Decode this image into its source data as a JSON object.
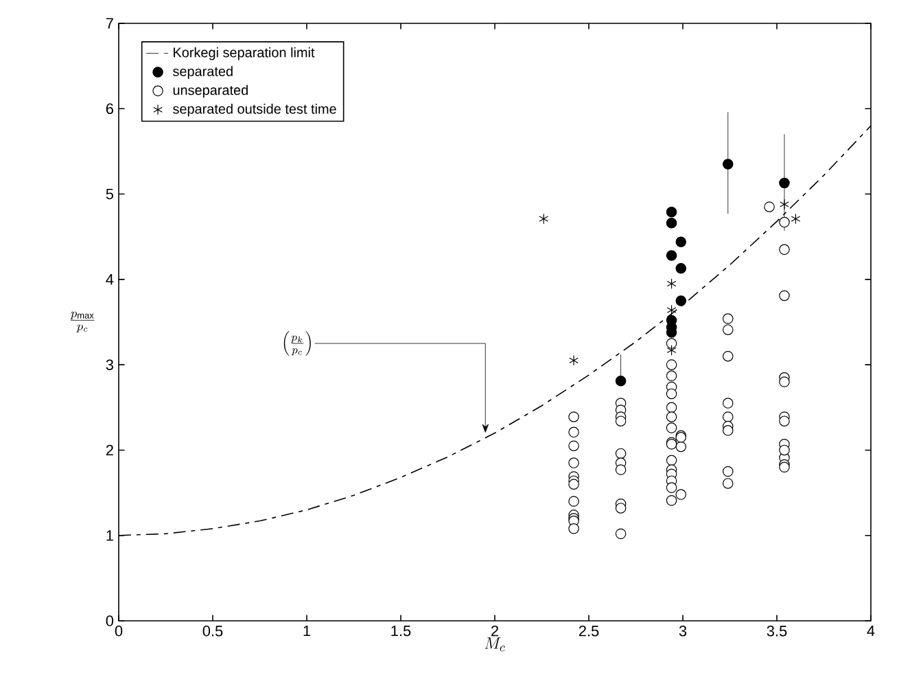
{
  "chart_data": {
    "type": "scatter",
    "xlabel": "M_c",
    "ylabel": "\\frac{p_{\\max}}{p_c}",
    "xlim": [
      0,
      4
    ],
    "ylim": [
      0,
      7
    ],
    "xticks": [
      0,
      0.5,
      1,
      1.5,
      2,
      2.5,
      3,
      3.5,
      4
    ],
    "yticks": [
      0,
      1,
      2,
      3,
      4,
      5,
      6,
      7
    ],
    "legend": "top left",
    "grid": false,
    "annotations": [
      {
        "text": "\\left(\\frac{p_k}{p_c}\\right)",
        "x": 1.95,
        "y": 2.2
      }
    ],
    "series": [
      {
        "name": "Korkegi separation limit",
        "type": "line",
        "line_style": "dashed",
        "marker": "none",
        "color": "#000000",
        "x": [
          0,
          0.25,
          0.5,
          0.75,
          1,
          1.25,
          1.5,
          1.75,
          2,
          2.25,
          2.5,
          2.75,
          3,
          3.25,
          3.5,
          3.75,
          4
        ],
        "values": [
          1.0,
          1.02,
          1.08,
          1.17,
          1.3,
          1.47,
          1.68,
          1.92,
          2.2,
          2.52,
          2.88,
          3.27,
          3.7,
          4.17,
          4.68,
          5.22,
          5.8
        ]
      },
      {
        "name": "separated",
        "marker": "circle",
        "color": "#000000",
        "x": [
          2.67,
          2.94,
          2.94,
          2.99,
          2.94,
          2.99,
          2.99,
          2.94,
          2.94,
          2.94,
          3.24,
          3.54
        ],
        "values": [
          2.81,
          4.79,
          4.66,
          4.44,
          4.28,
          4.13,
          3.75,
          3.52,
          3.44,
          3.38,
          5.35,
          5.13
        ],
        "errors": [
          [
            2.81,
            3.12
          ],
          null,
          null,
          null,
          null,
          null,
          null,
          null,
          null,
          null,
          [
            4.77,
            5.96
          ],
          [
            4.57,
            5.7
          ]
        ]
      },
      {
        "name": "unseparated",
        "marker": "circle",
        "color": "#ffffff",
        "x": [
          2.42,
          2.42,
          2.42,
          2.42,
          2.42,
          2.42,
          2.42,
          2.42,
          2.42,
          2.42,
          2.42,
          2.42,
          2.67,
          2.67,
          2.67,
          2.67,
          2.67,
          2.67,
          2.67,
          2.67,
          2.67,
          2.67,
          2.94,
          2.94,
          2.94,
          2.94,
          2.94,
          2.94,
          2.94,
          2.94,
          2.94,
          2.99,
          2.99,
          2.99,
          2.94,
          2.94,
          2.94,
          2.94,
          2.94,
          2.94,
          2.99,
          2.94,
          3.24,
          3.24,
          3.24,
          3.24,
          3.24,
          3.24,
          3.24,
          3.24,
          3.24,
          3.54,
          3.54,
          3.54,
          3.54,
          3.54,
          3.54,
          3.54,
          3.54,
          3.54,
          3.54,
          3.54,
          3.46,
          3.54
        ],
        "values": [
          2.39,
          2.21,
          2.05,
          1.85,
          1.69,
          1.64,
          1.6,
          1.4,
          1.24,
          1.2,
          1.17,
          1.08,
          2.55,
          2.47,
          2.39,
          2.34,
          1.96,
          1.85,
          1.77,
          1.37,
          1.32,
          1.02,
          3.25,
          3.0,
          2.87,
          2.74,
          2.66,
          2.5,
          2.39,
          2.26,
          2.09,
          2.17,
          2.04,
          2.15,
          2.07,
          1.88,
          1.77,
          1.72,
          1.64,
          1.56,
          1.48,
          1.41,
          3.54,
          3.41,
          3.1,
          2.55,
          2.39,
          2.28,
          2.23,
          1.75,
          1.61,
          4.35,
          3.81,
          2.85,
          2.8,
          2.39,
          2.34,
          2.07,
          1.91,
          1.83,
          1.8,
          4.67,
          4.85,
          2.0
        ]
      },
      {
        "name": "separated outside test time",
        "marker": "cross",
        "color": "#000000",
        "x": [
          2.26,
          2.42,
          2.94,
          2.94,
          2.94,
          3.54,
          3.6
        ],
        "values": [
          4.71,
          3.05,
          3.95,
          3.64,
          3.17,
          4.88,
          4.71
        ]
      }
    ]
  }
}
